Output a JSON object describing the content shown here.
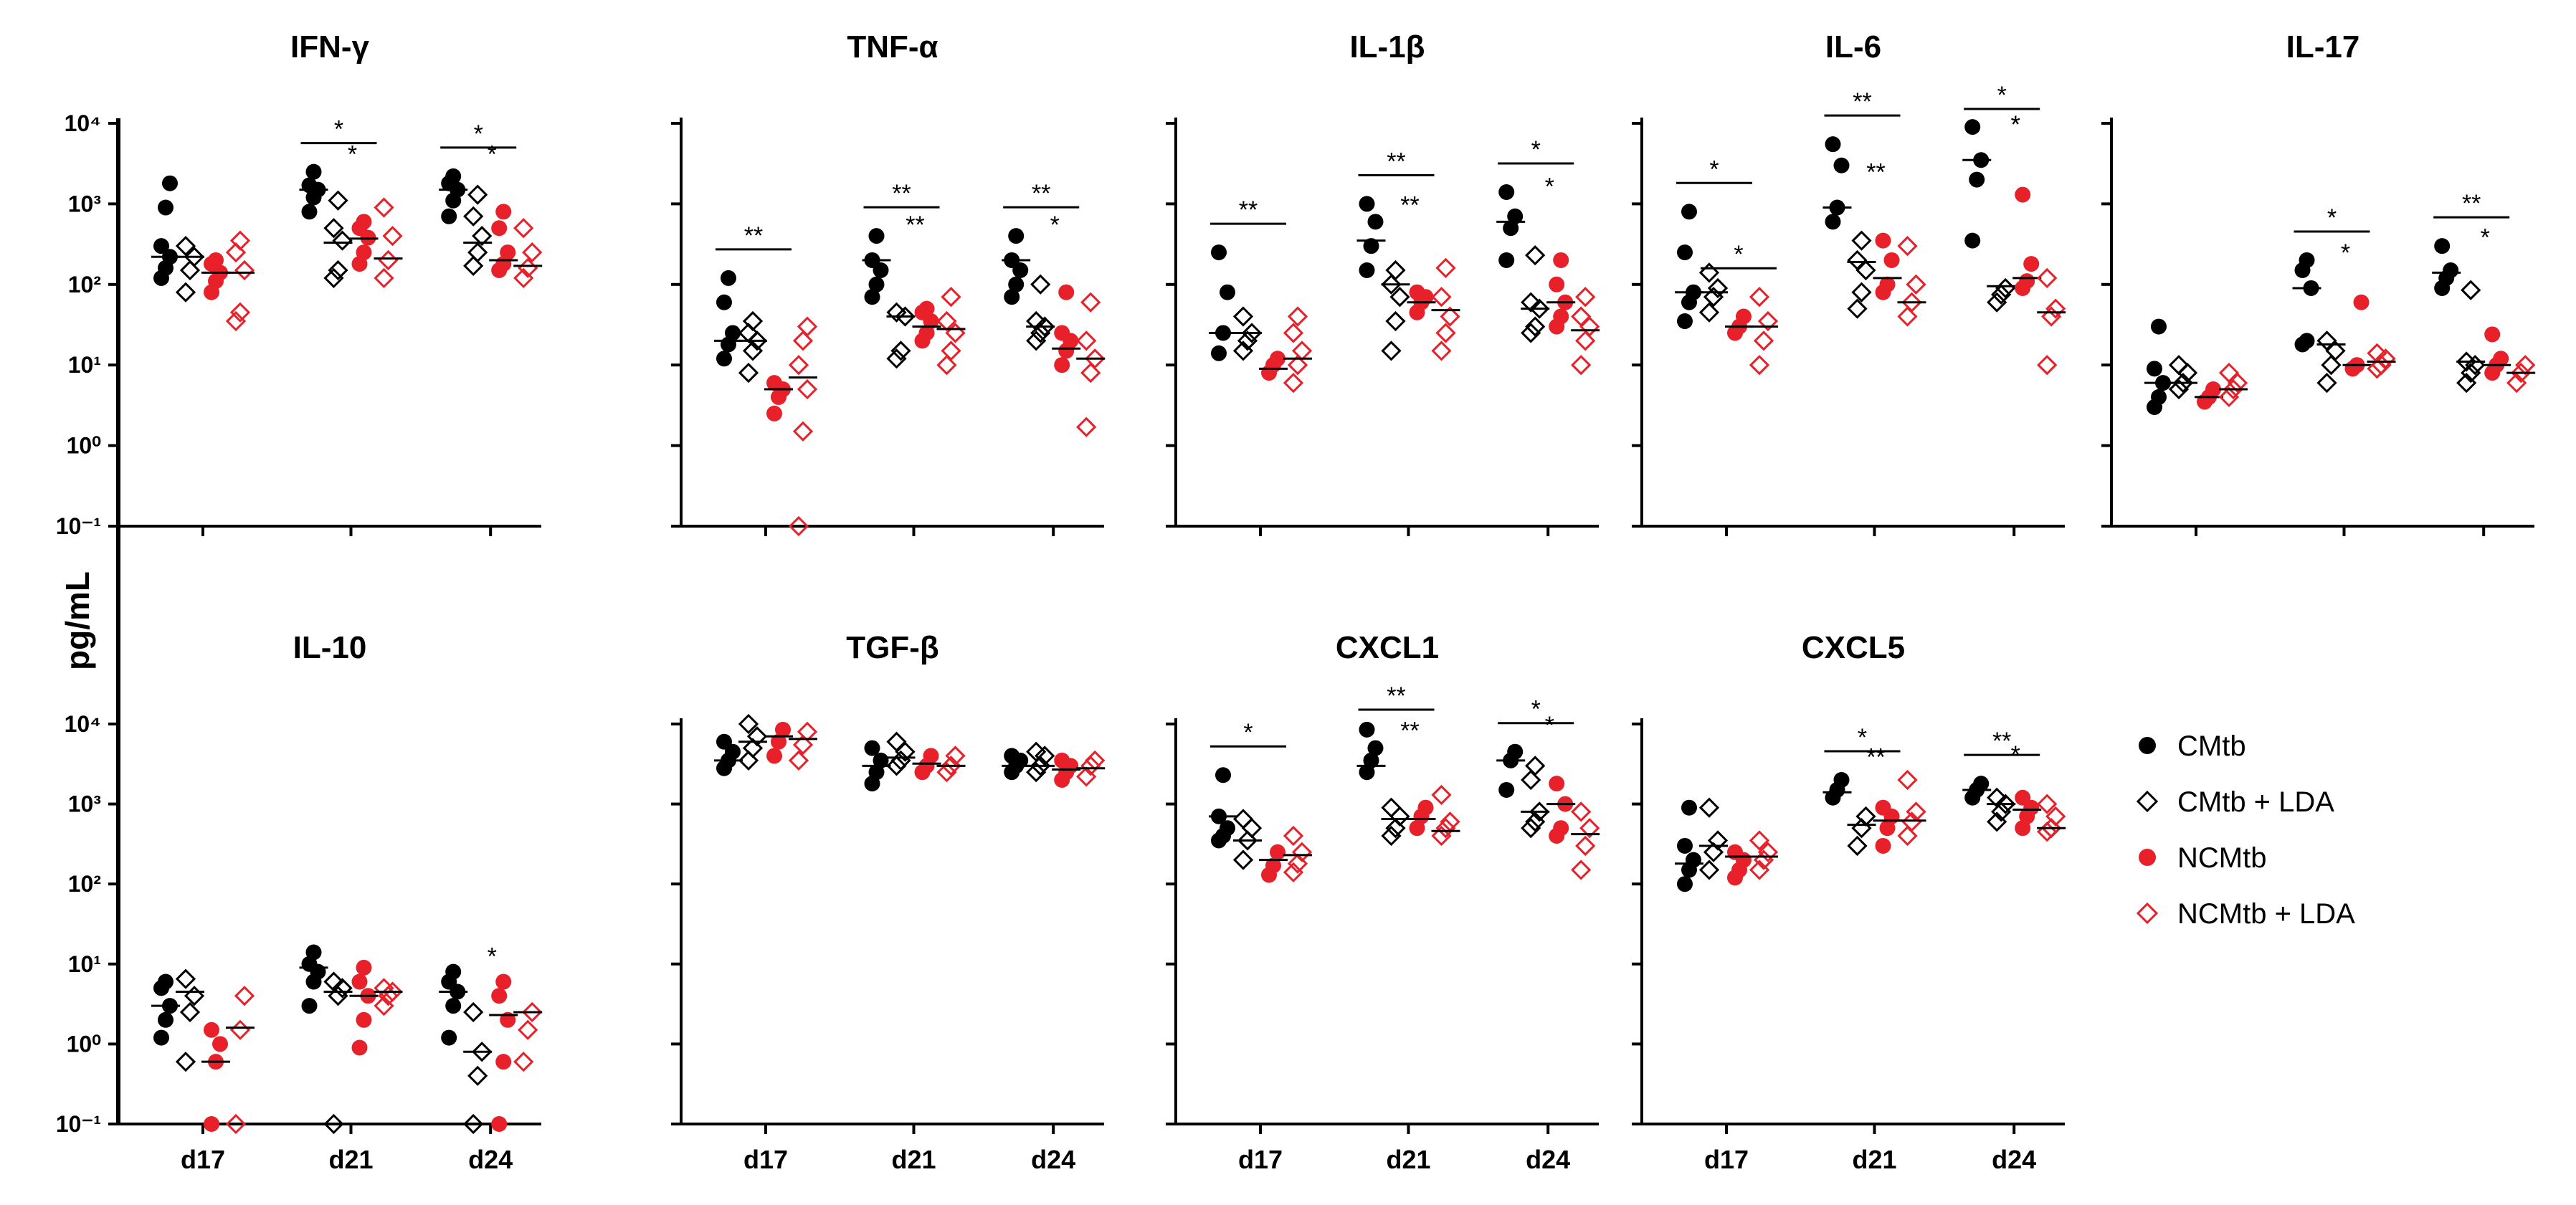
{
  "chart_data": {
    "type": "scatter",
    "ylabel": "pg/mL",
    "yscale": "log10",
    "ylim": [
      0.1,
      10000
    ],
    "yticks": [
      "10⁴",
      "10³",
      "10²",
      "10¹",
      "10⁰",
      "10⁻¹"
    ],
    "xcategories": [
      "d17",
      "d21",
      "d24"
    ],
    "groups": [
      {
        "name": "CMtb",
        "marker": "filled-circle",
        "color": "#000000"
      },
      {
        "name": "CMtb + LDA",
        "marker": "open-diamond",
        "color": "#000000"
      },
      {
        "name": "NCMtb",
        "marker": "filled-circle",
        "color": "#e8202a"
      },
      {
        "name": "NCMtb + LDA",
        "marker": "open-diamond",
        "color": "#e8202a"
      }
    ],
    "panels": [
      {
        "title": "IFN-γ",
        "data": [
          [
            [
              120,
              160,
              220,
              300,
              900,
              1800
            ],
            [
              80,
              150,
              220,
              300
            ],
            [
              80,
              110,
              140,
              180,
              200
            ],
            [
              35,
              45,
              150,
              250,
              350
            ]
          ],
          [
            [
              800,
              1200,
              1500,
              1700,
              2500
            ],
            [
              120,
              150,
              350,
              500,
              1100
            ],
            [
              180,
              250,
              380,
              500,
              600
            ],
            [
              120,
              200,
              400,
              900
            ]
          ],
          [
            [
              700,
              1100,
              1500,
              1800,
              2200
            ],
            [
              170,
              250,
              400,
              700,
              1300
            ],
            [
              150,
              180,
              250,
              500,
              800
            ],
            [
              120,
              160,
              250,
              500
            ]
          ]
        ],
        "medians": [
          [
            220,
            220,
            140,
            140
          ],
          [
            1500,
            330,
            370,
            210
          ],
          [
            1500,
            330,
            200,
            170
          ]
        ],
        "sig": [
          {
            "day": 1,
            "label": "*",
            "bar": true
          },
          {
            "day": 1,
            "label": "*",
            "bar": false
          },
          {
            "day": 2,
            "label": "*",
            "bar": true
          },
          {
            "day": 2,
            "label": "*",
            "bar": false
          }
        ]
      },
      {
        "title": "TNF-α",
        "data": [
          [
            [
              12,
              18,
              25,
              60,
              120
            ],
            [
              8,
              15,
              20,
              25,
              35
            ],
            [
              2.5,
              4,
              5,
              6
            ],
            [
              0.1,
              1.5,
              5,
              10,
              20,
              30
            ]
          ],
          [
            [
              70,
              100,
              150,
              200,
              400
            ],
            [
              12,
              15,
              40,
              45
            ],
            [
              20,
              25,
              35,
              45,
              50
            ],
            [
              10,
              15,
              25,
              35,
              70
            ]
          ],
          [
            [
              70,
              100,
              150,
              200,
              400
            ],
            [
              20,
              25,
              30,
              35,
              100
            ],
            [
              10,
              15,
              20,
              25,
              80
            ],
            [
              1.7,
              8,
              12,
              20,
              60
            ]
          ]
        ],
        "medians": [
          [
            20,
            20,
            5,
            7
          ],
          [
            200,
            40,
            30,
            28
          ],
          [
            200,
            30,
            16,
            12
          ]
        ],
        "sig": [
          {
            "day": 0,
            "label": "**",
            "bar": true
          },
          {
            "day": 1,
            "label": "**",
            "bar": true
          },
          {
            "day": 1,
            "label": "**",
            "bar": false
          },
          {
            "day": 2,
            "label": "**",
            "bar": true
          },
          {
            "day": 2,
            "label": "*",
            "bar": false
          }
        ]
      },
      {
        "title": "IL-1β",
        "data": [
          [
            [
              14,
              25,
              80,
              250
            ],
            [
              15,
              20,
              25,
              40
            ],
            [
              8,
              10,
              12
            ],
            [
              6,
              10,
              15,
              25,
              40
            ]
          ],
          [
            [
              150,
              300,
              600,
              1000
            ],
            [
              15,
              35,
              70,
              100,
              150
            ],
            [
              45,
              60,
              70,
              80
            ],
            [
              15,
              25,
              40,
              70,
              160
            ]
          ],
          [
            [
              200,
              500,
              700,
              1400
            ],
            [
              25,
              30,
              50,
              60,
              230
            ],
            [
              30,
              40,
              60,
              100,
              200
            ],
            [
              10,
              20,
              30,
              40,
              70
            ]
          ]
        ],
        "medians": [
          [
            25,
            25,
            9,
            12
          ],
          [
            350,
            100,
            60,
            48
          ],
          [
            600,
            50,
            60,
            27
          ]
        ],
        "sig": [
          {
            "day": 0,
            "label": "**",
            "bar": true
          },
          {
            "day": 1,
            "label": "**",
            "bar": true
          },
          {
            "day": 1,
            "label": "**",
            "bar": false
          },
          {
            "day": 2,
            "label": "*",
            "bar": true
          },
          {
            "day": 2,
            "label": "*",
            "bar": false
          }
        ]
      },
      {
        "title": "IL-6",
        "data": [
          [
            [
              35,
              60,
              80,
              250,
              800
            ],
            [
              45,
              70,
              90,
              140
            ],
            [
              25,
              30,
              40
            ],
            [
              10,
              20,
              35,
              70
            ]
          ],
          [
            [
              600,
              900,
              3000,
              5500
            ],
            [
              50,
              80,
              150,
              200,
              350
            ],
            [
              80,
              100,
              200,
              350
            ],
            [
              40,
              60,
              100,
              300
            ]
          ],
          [
            [
              350,
              2000,
              3500,
              9000
            ],
            [
              60,
              75,
              90
            ],
            [
              90,
              110,
              180,
              1300
            ],
            [
              10,
              40,
              50,
              120
            ]
          ]
        ],
        "medians": [
          [
            80,
            80,
            30,
            30
          ],
          [
            900,
            190,
            120,
            60
          ],
          [
            3500,
            95,
            120,
            45
          ]
        ],
        "sig": [
          {
            "day": 0,
            "label": "*",
            "bar": true
          },
          {
            "day": 0,
            "label": "*",
            "bar": true
          },
          {
            "day": 1,
            "label": "**",
            "bar": true
          },
          {
            "day": 1,
            "label": "**",
            "bar": false
          },
          {
            "day": 2,
            "label": "*",
            "bar": true
          },
          {
            "day": 2,
            "label": "*",
            "bar": false
          },
          {
            "day": 2,
            "label": "*",
            "bar": false
          }
        ]
      },
      {
        "title": "IL-17",
        "data": [
          [
            [
              3,
              4,
              6,
              9,
              30
            ],
            [
              5,
              6,
              8,
              10
            ],
            [
              3.5,
              4,
              5
            ],
            [
              4,
              5,
              6,
              8
            ]
          ],
          [
            [
              18,
              20,
              90,
              150,
              200
            ],
            [
              6,
              10,
              15,
              20
            ],
            [
              9,
              10,
              60
            ],
            [
              9,
              10,
              12,
              14
            ]
          ],
          [
            [
              90,
              120,
              150,
              300
            ],
            [
              6,
              8,
              10,
              11,
              85
            ],
            [
              8,
              10,
              12,
              24
            ],
            [
              6,
              8,
              10
            ]
          ]
        ],
        "medians": [
          [
            6,
            6,
            4,
            5
          ],
          [
            90,
            18,
            10,
            11
          ],
          [
            140,
            11,
            10,
            8
          ]
        ],
        "sig": [
          {
            "day": 1,
            "label": "*",
            "bar": true
          },
          {
            "day": 1,
            "label": "*",
            "bar": false
          },
          {
            "day": 2,
            "label": "**",
            "bar": true
          },
          {
            "day": 2,
            "label": "*",
            "bar": false
          }
        ]
      },
      {
        "title": "IL-10",
        "data": [
          [
            [
              1.2,
              2,
              3,
              5,
              6
            ],
            [
              0.6,
              2.5,
              4,
              6.5
            ],
            [
              0.1,
              0.6,
              1,
              1.5
            ],
            [
              0.1,
              1.5,
              4
            ]
          ],
          [
            [
              3,
              6,
              8,
              10,
              14
            ],
            [
              0.1,
              4,
              5,
              6
            ],
            [
              0.9,
              2,
              4,
              6,
              9
            ],
            [
              3,
              4,
              4.5,
              5
            ]
          ],
          [
            [
              1.2,
              3,
              4.5,
              6,
              8
            ],
            [
              0.1,
              0.4,
              0.8,
              2.5
            ],
            [
              0.1,
              0.6,
              2,
              4,
              6
            ],
            [
              0.6,
              1.5,
              2.5
            ]
          ]
        ],
        "medians": [
          [
            3,
            4.5,
            0.6,
            1.6
          ],
          [
            9,
            4.5,
            4,
            4.5
          ],
          [
            4.5,
            0.8,
            2.3,
            2.5
          ]
        ],
        "sig": [
          {
            "day": 2,
            "label": "*",
            "bar": false
          }
        ]
      },
      {
        "title": "TGF-β",
        "data": [
          [
            [
              2800,
              3500,
              4500,
              6000
            ],
            [
              3500,
              5000,
              7000,
              10000
            ],
            [
              4000,
              6000,
              8500
            ],
            [
              3500,
              5500,
              8000
            ]
          ],
          [
            [
              1800,
              2500,
              3500,
              5000
            ],
            [
              3000,
              3500,
              4500,
              6000
            ],
            [
              2500,
              3000,
              4000
            ],
            [
              2500,
              3000,
              4000
            ]
          ],
          [
            [
              2500,
              3000,
              3500,
              4000
            ],
            [
              2500,
              3000,
              4000,
              4500
            ],
            [
              2000,
              2500,
              3000,
              3500
            ],
            [
              2200,
              3000,
              3500
            ]
          ]
        ],
        "medians": [
          [
            3500,
            6000,
            7000,
            6500
          ],
          [
            3000,
            3800,
            3200,
            3000
          ],
          [
            3000,
            3000,
            2700,
            2800
          ]
        ],
        "sig": []
      },
      {
        "title": "CXCL1",
        "data": [
          [
            [
              350,
              400,
              500,
              700,
              2300
            ],
            [
              200,
              350,
              500,
              650
            ],
            [
              130,
              170,
              250
            ],
            [
              140,
              180,
              250,
              400
            ]
          ],
          [
            [
              2500,
              3500,
              5000,
              8500
            ],
            [
              400,
              500,
              700,
              900
            ],
            [
              500,
              700,
              900
            ],
            [
              400,
              500,
              600,
              1300
            ]
          ],
          [
            [
              1500,
              3500,
              4500
            ],
            [
              500,
              600,
              800,
              2000,
              3000
            ],
            [
              400,
              500,
              1000,
              1800
            ],
            [
              150,
              300,
              500,
              800
            ]
          ]
        ],
        "medians": [
          [
            700,
            350,
            200,
            230
          ],
          [
            3000,
            650,
            650,
            460
          ],
          [
            3500,
            800,
            1000,
            420
          ]
        ],
        "sig": [
          {
            "day": 0,
            "label": "*",
            "bar": true
          },
          {
            "day": 1,
            "label": "**",
            "bar": true
          },
          {
            "day": 1,
            "label": "**",
            "bar": false
          },
          {
            "day": 2,
            "label": "*",
            "bar": true
          },
          {
            "day": 2,
            "label": "*",
            "bar": false
          }
        ]
      },
      {
        "title": "CXCL5",
        "data": [
          [
            [
              100,
              150,
              200,
              300,
              900
            ],
            [
              150,
              250,
              350,
              900
            ],
            [
              120,
              150,
              200,
              250
            ],
            [
              150,
              200,
              250,
              350
            ]
          ],
          [
            [
              1200,
              1500,
              2000
            ],
            [
              300,
              500,
              700
            ],
            [
              300,
              500,
              700,
              900
            ],
            [
              400,
              600,
              800,
              2000
            ]
          ],
          [
            [
              1200,
              1500,
              1800
            ],
            [
              600,
              800,
              1000,
              1200
            ],
            [
              500,
              700,
              900,
              1200
            ],
            [
              450,
              500,
              700,
              1000
            ]
          ]
        ],
        "medians": [
          [
            180,
            300,
            220,
            220
          ],
          [
            1400,
            550,
            620,
            620
          ],
          [
            1500,
            1000,
            850,
            500
          ]
        ],
        "sig": [
          {
            "day": 1,
            "label": "*",
            "bar": true
          },
          {
            "day": 1,
            "label": "**",
            "bar": false
          },
          {
            "day": 2,
            "label": "**",
            "bar": true
          },
          {
            "day": 2,
            "label": "*",
            "bar": false
          }
        ]
      }
    ]
  }
}
